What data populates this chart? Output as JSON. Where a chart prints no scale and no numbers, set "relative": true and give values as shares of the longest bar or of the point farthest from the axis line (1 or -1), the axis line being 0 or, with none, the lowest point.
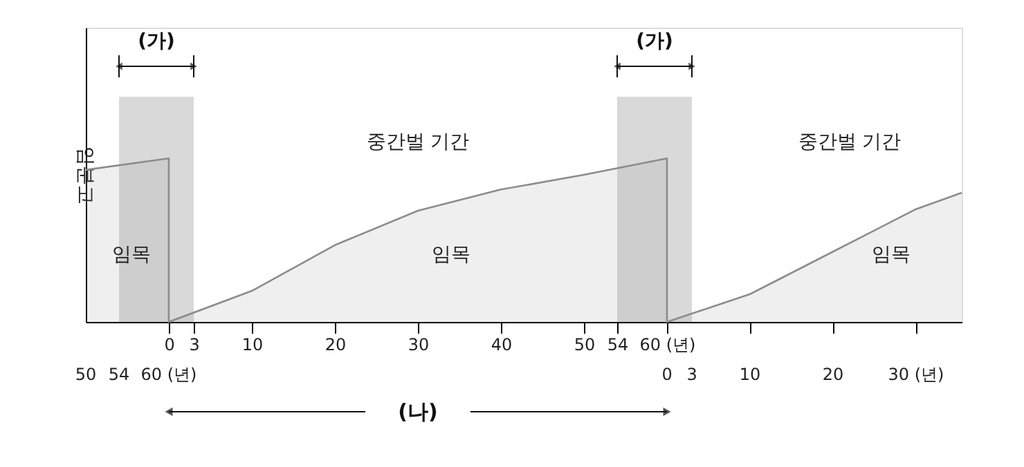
{
  "chart_data": {
    "type": "area",
    "ylabel": "임분고",
    "relative": true,
    "x": [
      -10,
      0,
      0,
      10,
      20,
      30,
      40,
      50,
      60,
      60,
      70,
      80,
      90,
      95.5
    ],
    "series": [
      {
        "color": "#8c8c8c",
        "values": [
          0.93,
          1,
          0,
          0.19,
          0.47,
          0.68,
          0.81,
          0.9,
          1,
          0,
          0.17,
          0.43,
          0.69,
          0.79
        ]
      }
    ],
    "xlim": [
      -10,
      95.5
    ],
    "xticks": [
      0,
      3,
      10,
      20,
      30,
      40,
      50,
      54,
      {
        "value": 60,
        "label": "60 (년)"
      },
      {
        "value": 70,
        "label": null
      },
      {
        "value": 80,
        "label": null
      },
      {
        "value": 90,
        "label": null
      }
    ],
    "bands": [
      {
        "axis": "x",
        "from": -6,
        "to": 3,
        "label": "(가)",
        "color": "#d0d0d0"
      },
      {
        "axis": "x",
        "from": 54,
        "to": 63,
        "label": "(가)",
        "color": "#d0d0d0"
      }
    ],
    "annotations": [
      "중간벌 기간",
      "중간벌 기간",
      "임목",
      "임목",
      "임목",
      "50",
      "54",
      "60 (년)",
      "0",
      "3",
      "10",
      "20",
      "30 (년)",
      "(나)"
    ],
    "grid": false
  }
}
